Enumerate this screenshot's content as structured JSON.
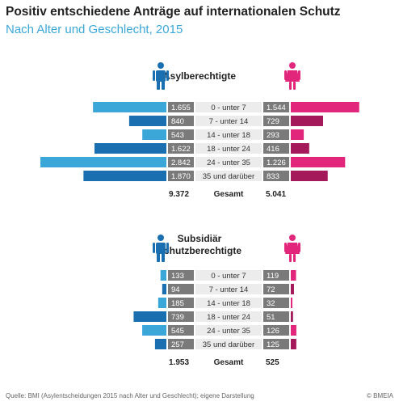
{
  "title": "Positiv entschiedene Anträge auf internationalen Schutz",
  "subtitle": "Nach Alter und Geschlecht, 2015",
  "source": "Quelle: BMI (Asylentscheidungen 2015 nach Alter und Geschlecht); eigene Darstellung",
  "copyright": "© BMEIA",
  "colors": {
    "male_light": "#3ba7d9",
    "male_dark": "#1a6fb0",
    "female_light": "#e2267c",
    "female_dark": "#a3195a",
    "label_box": "#7a7a7a",
    "category_box": "#ececec"
  },
  "chart_data": [
    {
      "type": "bar",
      "title": "Asylberechtigte",
      "categories": [
        "0 - unter 7",
        "7 - unter 14",
        "14 - unter 18",
        "18 - unter 24",
        "24 - unter 35",
        "35 und darüber"
      ],
      "series": [
        {
          "name": "",
          "side": "left",
          "values": [
            1655,
            840,
            543,
            1622,
            2842,
            1870
          ],
          "value_labels": [
            "1.655",
            "840",
            "543",
            "1.622",
            "2.842",
            "1.870"
          ]
        },
        {
          "name": "",
          "side": "right",
          "values": [
            1544,
            729,
            293,
            416,
            1226,
            833
          ],
          "value_labels": [
            "1.544",
            "729",
            "293",
            "416",
            "1.226",
            "833"
          ]
        }
      ],
      "total_label": "Gesamt",
      "total_left": "9.372",
      "total_right": "5.041"
    },
    {
      "type": "bar",
      "title": "Subsidiär Schutzberechtigte",
      "title_lines": [
        "Subsidiär",
        "Schutzberechtigte"
      ],
      "categories": [
        "0 - unter 7",
        "7 - unter 14",
        "14 - unter 18",
        "18 - unter 24",
        "24 - unter 35",
        "35 und darüber"
      ],
      "series": [
        {
          "name": "",
          "side": "left",
          "values": [
            133,
            94,
            185,
            739,
            545,
            257
          ],
          "value_labels": [
            "133",
            "94",
            "185",
            "739",
            "545",
            "257"
          ]
        },
        {
          "name": "",
          "side": "right",
          "values": [
            119,
            72,
            32,
            51,
            126,
            125
          ],
          "value_labels": [
            "119",
            "72",
            "32",
            "51",
            "126",
            "125"
          ]
        }
      ],
      "total_label": "Gesamt",
      "total_left": "1.953",
      "total_right": "525"
    }
  ]
}
